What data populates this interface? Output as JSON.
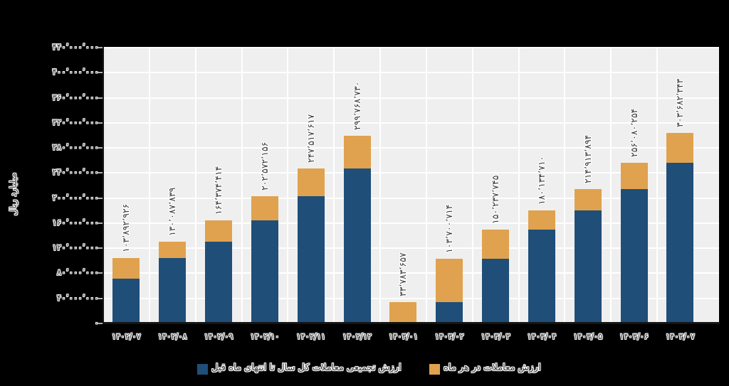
{
  "figure": {
    "background": "#000000",
    "plot_background": "#efefef",
    "gridline_color": "#ffffff",
    "text_color": "#3b3b3b",
    "text_halo": "#ffffff"
  },
  "chart_data": {
    "type": "bar",
    "stacked": true,
    "title": "",
    "xlabel": "",
    "ylabel": "میلیارد ریال",
    "grid": true,
    "legend_position": "bottom",
    "ylim": [
      0,
      440000000
    ],
    "y_tick_step": 40000000,
    "y_tick_values": [
      440000000,
      400000000,
      360000000,
      320000000,
      280000000,
      240000000,
      200000000,
      160000000,
      120000000,
      80000000,
      40000000,
      0
    ],
    "y_tick_labels": [
      "۴۴۰٬۰۰۰٬۰۰۰",
      "۴۰۰٬۰۰۰٬۰۰۰",
      "۳۶۰٬۰۰۰٬۰۰۰",
      "۳۲۰٬۰۰۰٬۰۰۰",
      "۲۸۰٬۰۰۰٬۰۰۰",
      "۲۴۰٬۰۰۰٬۰۰۰",
      "۲۰۰٬۰۰۰٬۰۰۰",
      "۱۶۰٬۰۰۰٬۰۰۰",
      "۱۲۰٬۰۰۰٬۰۰۰",
      "۸۰٬۰۰۰٬۰۰۰",
      "۴۰٬۰۰۰٬۰۰۰",
      "۰"
    ],
    "categories": [
      "۱۴۰۲/۰۷",
      "۱۴۰۲/۰۸",
      "۱۴۰۲/۰۹",
      "۱۴۰۲/۱۰",
      "۱۴۰۲/۱۱",
      "۱۴۰۲/۱۲",
      "۱۴۰۳/۰۱",
      "۱۴۰۳/۰۲",
      "۱۴۰۳/۰۳",
      "۱۴۰۳/۰۴",
      "۱۴۰۳/۰۵",
      "۱۴۰۳/۰۶",
      "۱۴۰۳/۰۷"
    ],
    "series": [
      {
        "name": "ارزش تجمیعی معاملات کل سال تا انتهای ماه قبل",
        "color": "#1f4e79",
        "values": [
          72000000,
          103892926,
          130087839,
          164374414,
          202572156,
          247517617,
          0,
          33783657,
          103700714,
          150237745,
          180134710,
          214913894,
          256080254
        ]
      },
      {
        "name": "ارزش معاملات در هر ماه",
        "color": "#e0a24e",
        "values": [
          31892926,
          26194913,
          34286575,
          38197742,
          44945461,
          52251113,
          33783657,
          69917057,
          46537031,
          29896965,
          34779184,
          41166360,
          47602089
        ]
      }
    ],
    "bar_totals": [
      103892926,
      130087839,
      164374414,
      202572156,
      247517617,
      299768730,
      33783657,
      103700714,
      150237745,
      180134710,
      214913894,
      256080254,
      303682343
    ],
    "bar_total_labels": [
      "۱۰۳٬۸۹۲٬۹۲۶",
      "۱۳۰٬۰۸۷٬۸۳۹",
      "۱۶۴٬۳۷۴٬۴۱۴",
      "۲۰۲٬۵۷۲٬۱۵۶",
      "۲۴۷٬۵۱۷٬۶۱۷",
      "۲۹۹٬۷۶۸٬۷۳۰",
      "۳۳٬۷۸۳٬۶۵۷",
      "۱۰۳٬۷۰۰٬۷۱۴",
      "۱۵۰٬۲۳۷٬۷۴۵",
      "۱۸۰٬۱۳۴٬۷۱۰",
      "۲۱۴٬۹۱۳٬۸۹۴",
      "۲۵۶٬۰۸۰٬۲۵۴",
      "۳۰۳٬۶۸۲٬۳۴۳"
    ],
    "first_month_base_estimated": true
  },
  "legend": {
    "items": [
      {
        "label": "ارزش تجمیعی معاملات کل سال تا انتهای ماه قبل",
        "color": "#1f4e79"
      },
      {
        "label": "ارزش معاملات در هر ماه",
        "color": "#e0a24e"
      }
    ]
  }
}
